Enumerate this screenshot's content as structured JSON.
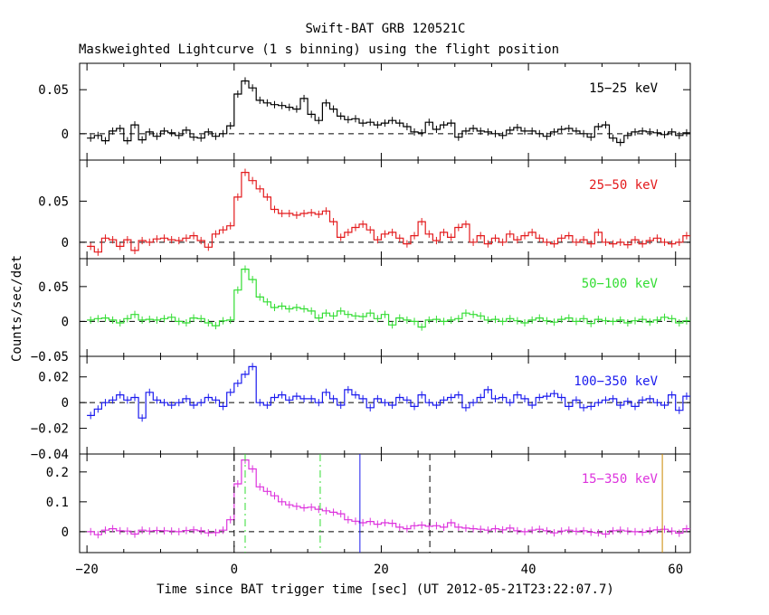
{
  "chart_data": {
    "type": "line",
    "title": "Swift-BAT GRB 120521C",
    "subtitle": "Maskweighted Lightcurve (1 s binning) using the flight position",
    "xlabel": "Time since BAT trigger time [sec] (UT 2012-05-21T23:22:07.7)",
    "ylabel": "Counts/sec/det",
    "xlim": [
      -21,
      62
    ],
    "xticks": [
      -20,
      0,
      20,
      40,
      60
    ],
    "grid": false,
    "panels": [
      {
        "band": "15−25 keV",
        "color": "#000000",
        "ylim": [
          -0.03,
          0.08
        ],
        "yticks": [
          0,
          0.05
        ],
        "ytick_labels": [
          "0",
          "0.05"
        ],
        "x": [
          -20,
          -19,
          -18,
          -17,
          -16,
          -15,
          -14,
          -13,
          -12,
          -11,
          -10,
          -9,
          -8,
          -7,
          -6,
          -5,
          -4,
          -3,
          -2,
          -1,
          0,
          1,
          2,
          3,
          4,
          5,
          6,
          7,
          8,
          9,
          10,
          11,
          12,
          13,
          14,
          15,
          16,
          17,
          18,
          19,
          20,
          21,
          22,
          23,
          24,
          25,
          26,
          27,
          28,
          29,
          30,
          31,
          32,
          33,
          34,
          35,
          36,
          37,
          38,
          39,
          40,
          41,
          42,
          43,
          44,
          45,
          46,
          47,
          48,
          49,
          50,
          51,
          52,
          53,
          54,
          55,
          56,
          57,
          58,
          59,
          60,
          61
        ],
        "values": [
          -0.005,
          -0.002,
          -0.008,
          0.003,
          0.006,
          -0.008,
          0.01,
          -0.007,
          0.002,
          -0.003,
          0.003,
          0.001,
          -0.002,
          0.004,
          -0.004,
          -0.005,
          0.002,
          -0.003,
          0.0,
          0.009,
          0.045,
          0.06,
          0.052,
          0.038,
          0.035,
          0.033,
          0.032,
          0.03,
          0.028,
          0.04,
          0.022,
          0.015,
          0.035,
          0.028,
          0.02,
          0.016,
          0.017,
          0.012,
          0.013,
          0.01,
          0.012,
          0.015,
          0.012,
          0.008,
          0.002,
          0.001,
          0.013,
          0.005,
          0.01,
          0.012,
          -0.004,
          0.003,
          0.006,
          0.003,
          0.002,
          0.0,
          -0.002,
          0.004,
          0.007,
          0.003,
          0.003,
          0.0,
          -0.003,
          0.002,
          0.005,
          0.006,
          0.003,
          0.0,
          -0.004,
          0.008,
          0.01,
          -0.005,
          -0.01,
          -0.002,
          0.002,
          0.003,
          0.002,
          0.001,
          -0.001,
          0.002,
          -0.002,
          0.001
        ]
      },
      {
        "band": "25−50 keV",
        "color": "#e31a1c",
        "ylim": [
          -0.02,
          0.1
        ],
        "yticks": [
          0,
          0.05
        ],
        "ytick_labels": [
          "0",
          "0.05"
        ],
        "x": [
          -20,
          -19,
          -18,
          -17,
          -16,
          -15,
          -14,
          -13,
          -12,
          -11,
          -10,
          -9,
          -8,
          -7,
          -6,
          -5,
          -4,
          -3,
          -2,
          -1,
          0,
          1,
          2,
          3,
          4,
          5,
          6,
          7,
          8,
          9,
          10,
          11,
          12,
          13,
          14,
          15,
          16,
          17,
          18,
          19,
          20,
          21,
          22,
          23,
          24,
          25,
          26,
          27,
          28,
          29,
          30,
          31,
          32,
          33,
          34,
          35,
          36,
          37,
          38,
          39,
          40,
          41,
          42,
          43,
          44,
          45,
          46,
          47,
          48,
          49,
          50,
          51,
          52,
          53,
          54,
          55,
          56,
          57,
          58,
          59,
          60,
          61
        ],
        "values": [
          -0.005,
          -0.012,
          0.005,
          0.003,
          -0.005,
          0.003,
          -0.01,
          0.002,
          0.0,
          0.004,
          0.005,
          0.003,
          0.002,
          0.005,
          0.008,
          0.002,
          -0.006,
          0.01,
          0.015,
          0.02,
          0.055,
          0.085,
          0.075,
          0.065,
          0.055,
          0.04,
          0.035,
          0.035,
          0.033,
          0.035,
          0.036,
          0.034,
          0.038,
          0.025,
          0.006,
          0.012,
          0.018,
          0.022,
          0.015,
          0.003,
          0.01,
          0.012,
          0.005,
          -0.002,
          0.008,
          0.025,
          0.01,
          0.002,
          0.012,
          0.006,
          0.018,
          0.022,
          0.0,
          0.008,
          -0.002,
          0.005,
          0.0,
          0.01,
          0.003,
          0.008,
          0.012,
          0.005,
          0.0,
          -0.002,
          0.005,
          0.008,
          0.0,
          0.003,
          -0.002,
          0.012,
          0.0,
          -0.002,
          0.0,
          -0.003,
          0.003,
          -0.002,
          0.002,
          0.005,
          0.0,
          -0.002,
          0.0,
          0.008
        ]
      },
      {
        "band": "50−100 keV",
        "color": "#33dd33",
        "ylim": [
          -0.05,
          0.09
        ],
        "yticks": [
          -0.05,
          0,
          0.05
        ],
        "ytick_labels": [
          "−0.05",
          "0",
          "0.05"
        ],
        "x": [
          -20,
          -19,
          -18,
          -17,
          -16,
          -15,
          -14,
          -13,
          -12,
          -11,
          -10,
          -9,
          -8,
          -7,
          -6,
          -5,
          -4,
          -3,
          -2,
          -1,
          0,
          1,
          2,
          3,
          4,
          5,
          6,
          7,
          8,
          9,
          10,
          11,
          12,
          13,
          14,
          15,
          16,
          17,
          18,
          19,
          20,
          21,
          22,
          23,
          24,
          25,
          26,
          27,
          28,
          29,
          30,
          31,
          32,
          33,
          34,
          35,
          36,
          37,
          38,
          39,
          40,
          41,
          42,
          43,
          44,
          45,
          46,
          47,
          48,
          49,
          50,
          51,
          52,
          53,
          54,
          55,
          56,
          57,
          58,
          59,
          60,
          61
        ],
        "values": [
          0.002,
          0.004,
          0.005,
          0.002,
          -0.002,
          0.004,
          0.01,
          0.002,
          0.003,
          0.002,
          0.004,
          0.006,
          0.0,
          -0.002,
          0.005,
          0.004,
          -0.002,
          -0.006,
          0.001,
          0.002,
          0.045,
          0.075,
          0.06,
          0.035,
          0.028,
          0.02,
          0.022,
          0.018,
          0.02,
          0.018,
          0.015,
          0.005,
          0.012,
          0.008,
          0.015,
          0.01,
          0.008,
          0.007,
          0.012,
          0.004,
          0.01,
          -0.005,
          0.005,
          0.002,
          0.0,
          -0.008,
          0.002,
          0.003,
          0.0,
          0.002,
          0.004,
          0.012,
          0.01,
          0.008,
          0.002,
          0.003,
          0.0,
          0.004,
          0.001,
          -0.002,
          0.002,
          0.005,
          0.001,
          -0.001,
          0.003,
          0.005,
          0.0,
          0.004,
          -0.003,
          0.003,
          0.001,
          0.0,
          0.002,
          -0.002,
          0.001,
          0.003,
          -0.001,
          0.002,
          0.006,
          0.004,
          -0.002,
          0.001
        ]
      },
      {
        "band": "100−350 keV",
        "color": "#1a1aee",
        "ylim": [
          -0.04,
          0.036
        ],
        "yticks": [
          -0.04,
          -0.02,
          0,
          0.02
        ],
        "ytick_labels": [
          "−0.04",
          "−0.02",
          "0",
          "0.02"
        ],
        "x": [
          -20,
          -19,
          -18,
          -17,
          -16,
          -15,
          -14,
          -13,
          -12,
          -11,
          -10,
          -9,
          -8,
          -7,
          -6,
          -5,
          -4,
          -3,
          -2,
          -1,
          0,
          1,
          2,
          3,
          4,
          5,
          6,
          7,
          8,
          9,
          10,
          11,
          12,
          13,
          14,
          15,
          16,
          17,
          18,
          19,
          20,
          21,
          22,
          23,
          24,
          25,
          26,
          27,
          28,
          29,
          30,
          31,
          32,
          33,
          34,
          35,
          36,
          37,
          38,
          39,
          40,
          41,
          42,
          43,
          44,
          45,
          46,
          47,
          48,
          49,
          50,
          51,
          52,
          53,
          54,
          55,
          56,
          57,
          58,
          59,
          60,
          61
        ],
        "values": [
          -0.01,
          -0.005,
          0.0,
          0.002,
          0.006,
          0.002,
          0.004,
          -0.012,
          0.008,
          0.002,
          0.0,
          -0.002,
          0.0,
          0.003,
          -0.002,
          0.0,
          0.004,
          0.002,
          -0.003,
          0.008,
          0.015,
          0.022,
          0.028,
          0.0,
          -0.002,
          0.004,
          0.006,
          0.002,
          0.005,
          0.003,
          0.003,
          0.0,
          0.008,
          0.003,
          -0.002,
          0.01,
          0.006,
          0.003,
          -0.004,
          0.003,
          0.0,
          -0.002,
          0.004,
          0.002,
          -0.003,
          0.006,
          0.0,
          -0.002,
          0.002,
          0.004,
          0.006,
          -0.004,
          0.0,
          0.004,
          0.01,
          0.003,
          0.004,
          0.0,
          0.006,
          0.003,
          -0.002,
          0.004,
          0.005,
          0.007,
          0.004,
          -0.003,
          0.002,
          -0.004,
          -0.003,
          0.0,
          0.002,
          0.003,
          -0.002,
          0.001,
          -0.003,
          0.002,
          0.003,
          0.0,
          -0.002,
          0.006,
          -0.006,
          0.005
        ]
      },
      {
        "band": "15−350 keV",
        "color": "#dd33dd",
        "ylim": [
          -0.07,
          0.26
        ],
        "yticks": [
          0,
          0.1,
          0.2
        ],
        "ytick_labels": [
          "0",
          "0.1",
          "0.2"
        ],
        "x": [
          -20,
          -19,
          -18,
          -17,
          -16,
          -15,
          -14,
          -13,
          -12,
          -11,
          -10,
          -9,
          -8,
          -7,
          -6,
          -5,
          -4,
          -3,
          -2,
          -1,
          0,
          1,
          2,
          3,
          4,
          5,
          6,
          7,
          8,
          9,
          10,
          11,
          12,
          13,
          14,
          15,
          16,
          17,
          18,
          19,
          20,
          21,
          22,
          23,
          24,
          25,
          26,
          27,
          28,
          29,
          30,
          31,
          32,
          33,
          34,
          35,
          36,
          37,
          38,
          39,
          40,
          41,
          42,
          43,
          44,
          45,
          46,
          47,
          48,
          49,
          50,
          51,
          52,
          53,
          54,
          55,
          56,
          57,
          58,
          59,
          60,
          61
        ],
        "values": [
          0.0,
          -0.01,
          0.005,
          0.01,
          0.003,
          0.002,
          -0.008,
          0.005,
          0.002,
          0.004,
          0.003,
          0.002,
          0.0,
          0.004,
          0.006,
          0.003,
          -0.004,
          -0.003,
          0.005,
          0.04,
          0.16,
          0.24,
          0.21,
          0.15,
          0.135,
          0.12,
          0.1,
          0.09,
          0.085,
          0.08,
          0.082,
          0.075,
          0.07,
          0.065,
          0.06,
          0.04,
          0.035,
          0.03,
          0.034,
          0.025,
          0.03,
          0.028,
          0.015,
          0.01,
          0.02,
          0.022,
          0.018,
          0.02,
          0.015,
          0.03,
          0.015,
          0.012,
          0.01,
          0.008,
          0.005,
          0.01,
          0.006,
          0.012,
          0.003,
          0.0,
          0.005,
          0.008,
          0.003,
          -0.004,
          0.002,
          0.005,
          0.001,
          0.003,
          -0.002,
          -0.004,
          -0.008,
          0.003,
          0.005,
          0.002,
          0.0,
          -0.002,
          0.003,
          0.006,
          0.008,
          0.002,
          -0.005,
          0.01
        ]
      }
    ],
    "markers": [
      {
        "x": 0,
        "color": "#000000",
        "style": "dashed"
      },
      {
        "x": 1.5,
        "color": "#33dd33",
        "style": "dashdot"
      },
      {
        "x": 11.7,
        "color": "#33dd33",
        "style": "dashdot"
      },
      {
        "x": 17.1,
        "color": "#1a1aee",
        "style": "solid"
      },
      {
        "x": 26.6,
        "color": "#000000",
        "style": "dashed"
      },
      {
        "x": 58.2,
        "color": "#cc8800",
        "style": "solid"
      }
    ]
  }
}
